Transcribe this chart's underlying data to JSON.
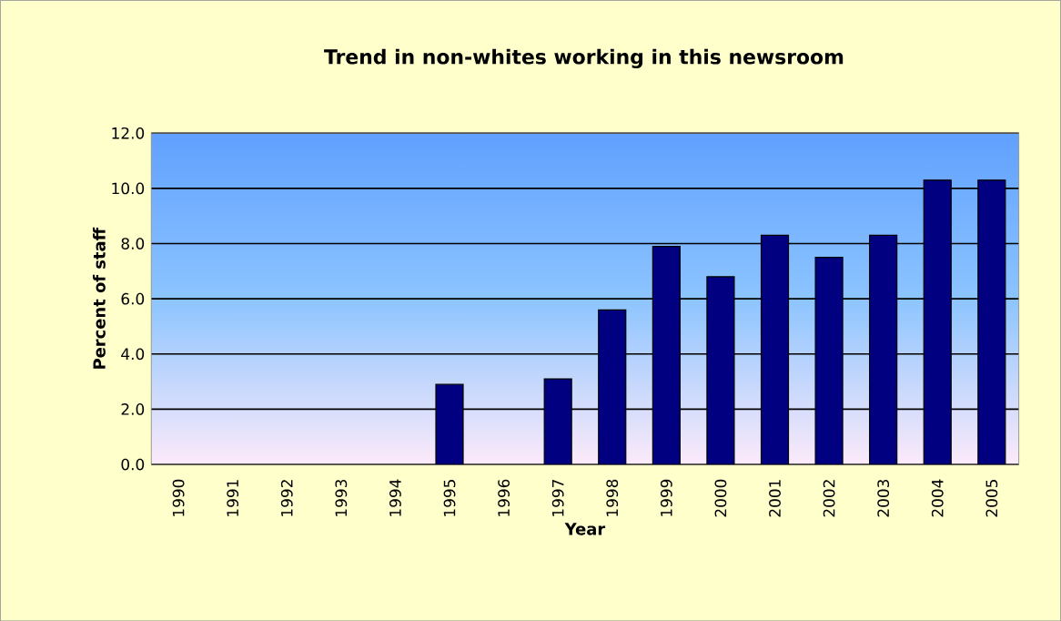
{
  "chart_data": {
    "type": "bar",
    "title": "Trend in non-whites working in this newsroom",
    "xlabel": "Year",
    "ylabel": "Percent of staff",
    "categories": [
      "1990",
      "1991",
      "1992",
      "1993",
      "1994",
      "1995",
      "1996",
      "1997",
      "1998",
      "1999",
      "2000",
      "2001",
      "2002",
      "2003",
      "2004",
      "2005"
    ],
    "values": [
      null,
      null,
      null,
      null,
      null,
      2.9,
      null,
      3.1,
      5.6,
      7.9,
      6.8,
      8.3,
      7.5,
      8.3,
      10.3,
      10.3
    ],
    "color": "#000080",
    "ylim": [
      0,
      12
    ],
    "yticks": [
      {
        "value": 0,
        "label": "0.0"
      },
      {
        "value": 2,
        "label": "2.0"
      },
      {
        "value": 4,
        "label": "4.0"
      },
      {
        "value": 6,
        "label": "6.0"
      },
      {
        "value": 8,
        "label": "8.0"
      },
      {
        "value": 10,
        "label": "10.0"
      },
      {
        "value": 12,
        "label": "12.0"
      }
    ],
    "grid": "y"
  }
}
